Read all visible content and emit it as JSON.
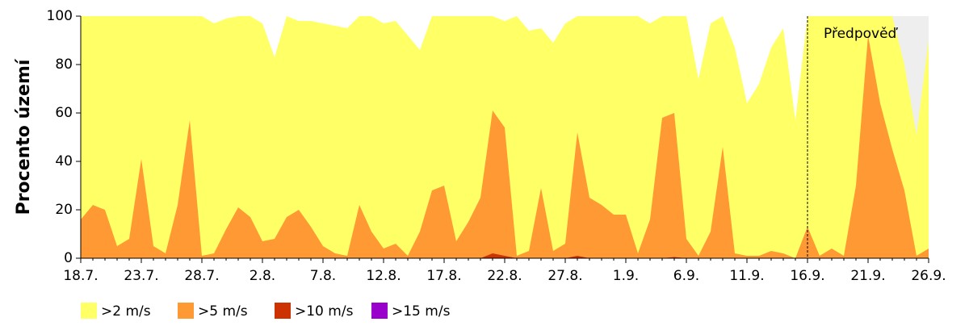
{
  "chart_data": {
    "type": "area",
    "ylabel": "Procento území",
    "categories": [
      "18.7.",
      null,
      null,
      null,
      null,
      "23.7.",
      null,
      null,
      null,
      null,
      "28.7.",
      null,
      null,
      null,
      null,
      "2.8.",
      null,
      null,
      null,
      null,
      "7.8.",
      null,
      null,
      null,
      null,
      "12.8.",
      null,
      null,
      null,
      null,
      "17.8.",
      null,
      null,
      null,
      null,
      "22.8.",
      null,
      null,
      null,
      null,
      "27.8.",
      null,
      null,
      null,
      null,
      "1.9.",
      null,
      null,
      null,
      null,
      "6.9.",
      null,
      null,
      null,
      null,
      "11.9.",
      null,
      null,
      null,
      null,
      "16.9.",
      null,
      null,
      null,
      null,
      "21.9.",
      null,
      null,
      null,
      null,
      "26.9."
    ],
    "series": [
      {
        "name": ">2 m/s",
        "color": "#ffff66",
        "values": [
          100,
          100,
          100,
          100,
          100,
          100,
          100,
          100,
          100,
          100,
          100,
          97,
          99,
          100,
          100,
          97,
          83,
          100,
          98,
          98,
          97,
          96,
          95,
          100,
          100,
          97,
          98,
          92,
          86,
          100,
          100,
          100,
          100,
          100,
          100,
          98,
          100,
          94,
          95,
          89,
          97,
          100,
          100,
          100,
          100,
          100,
          100,
          97,
          100,
          100,
          100,
          74,
          97,
          100,
          87,
          64,
          72,
          87,
          95,
          57,
          100,
          100,
          100,
          100,
          100,
          100,
          100,
          100,
          80,
          51,
          90
        ]
      },
      {
        "name": ">5 m/s",
        "color": "#ff9933",
        "values": [
          16,
          22,
          20,
          5,
          8,
          41,
          5,
          2,
          22,
          57,
          1,
          2,
          12,
          21,
          17,
          7,
          8,
          17,
          20,
          13,
          5,
          2,
          1,
          22,
          11,
          4,
          6,
          1,
          11,
          28,
          30,
          7,
          15,
          25,
          61,
          54,
          1,
          3,
          29,
          3,
          6,
          52,
          25,
          22,
          18,
          18,
          2,
          16,
          58,
          60,
          8,
          1,
          11,
          46,
          2,
          1,
          1,
          3,
          2,
          0,
          13,
          1,
          4,
          1,
          30,
          92,
          64,
          45,
          28,
          1,
          4
        ]
      },
      {
        "name": ">10 m/s",
        "color": "#cc3300",
        "values": [
          0,
          0,
          0,
          0,
          0,
          0,
          0,
          0,
          0,
          0,
          0,
          0,
          0,
          0,
          0,
          0,
          0,
          0,
          0,
          0,
          0,
          0,
          0,
          0,
          0,
          0,
          0,
          0,
          0,
          0,
          0,
          0,
          0,
          0,
          2,
          1,
          0,
          0,
          0,
          0,
          0,
          1,
          0,
          0,
          0,
          0,
          0,
          0,
          0,
          0.5,
          0,
          0,
          0,
          0,
          0,
          0,
          0,
          0,
          0,
          0,
          0,
          0,
          0,
          0,
          0,
          0,
          0,
          0,
          0,
          0,
          0
        ]
      },
      {
        "name": ">15 m/s",
        "color": "#9900cc",
        "values": [
          0,
          0,
          0,
          0,
          0,
          0,
          0,
          0,
          0,
          0,
          0,
          0,
          0,
          0,
          0,
          0,
          0,
          0,
          0,
          0,
          0,
          0,
          0,
          0,
          0,
          0,
          0,
          0,
          0,
          0,
          0,
          0,
          0,
          0,
          0,
          0,
          0,
          0,
          0,
          0,
          0,
          0,
          0,
          0,
          0,
          0,
          0,
          0,
          0,
          0,
          0,
          0,
          0,
          0,
          0,
          0,
          0,
          0,
          0,
          0,
          0,
          0,
          0,
          0,
          0,
          0,
          0,
          0,
          0,
          0,
          0
        ]
      }
    ],
    "ylim": [
      0,
      100
    ],
    "yticks": [
      0,
      20,
      40,
      60,
      80,
      100
    ],
    "forecast": {
      "label": "Předpověď",
      "x": "16.9.",
      "color": "#eeeeee"
    },
    "legend": "bottom"
  }
}
